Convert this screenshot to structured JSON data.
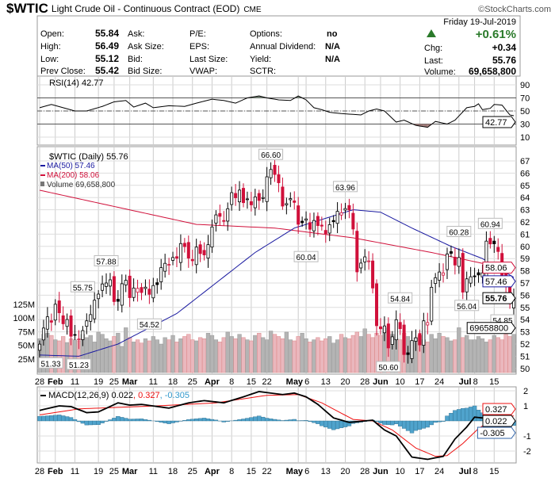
{
  "header": {
    "symbol": "$WTIC",
    "name": "Light Crude Oil - Continuous Contract (EOD)",
    "exchange": "CME",
    "copyright": "©StockCharts.com",
    "date": "Friday  19-Jul-2019",
    "change_pct": "+0.61%",
    "fields": [
      {
        "label": "Open:",
        "value": "55.84"
      },
      {
        "label": "High:",
        "value": "56.49"
      },
      {
        "label": "Low:",
        "value": "55.12"
      },
      {
        "label": "Prev Close:",
        "value": "55.42"
      }
    ],
    "col2": [
      "Ask:",
      "Ask Size:",
      "Bid:",
      "Bid Size:"
    ],
    "col3": [
      "P/E:",
      "EPS:",
      "Last Size:",
      "VWAP:"
    ],
    "col4": [
      {
        "label": "Options:",
        "value": "no"
      },
      {
        "label": "Annual Dividend:",
        "value": "N/A"
      },
      {
        "label": "Yield:",
        "value": "N/A"
      },
      {
        "label": "SCTR:",
        "value": ""
      }
    ],
    "right": [
      {
        "label": "Chg:",
        "value": "+0.34"
      },
      {
        "label": "Last:",
        "value": "55.76"
      },
      {
        "label": "Volume:",
        "value": "69,658,800"
      }
    ]
  },
  "colors": {
    "up": "#000000",
    "down": "#d0103a",
    "ma50": "#1a1aa0",
    "ma200": "#d0103a",
    "vol_up": "#b4b4b4",
    "vol_down": "#eab7bd",
    "hist": "#4fa3cc",
    "macd": "#000000",
    "signal": "#ee1111",
    "rsi_fill_hi": "#7a8a7a",
    "rsi_fill_lo": "#a07a78",
    "change_up": "#2a7a2a"
  },
  "chart_data": [
    {
      "type": "line",
      "title": "RSI(14) 42.77",
      "ylim": [
        0,
        100
      ],
      "yticks": [
        "90",
        "70",
        "50",
        "30",
        "10"
      ],
      "ytick_values": [
        90,
        70,
        50,
        30,
        10
      ],
      "last_label": "42.77",
      "points": [
        [
          0,
          55
        ],
        [
          3,
          60
        ],
        [
          6,
          55
        ],
        [
          9,
          50
        ],
        [
          12,
          50
        ],
        [
          16,
          57
        ],
        [
          19,
          64
        ],
        [
          22,
          66
        ],
        [
          24,
          56
        ],
        [
          27,
          62
        ],
        [
          29,
          55
        ],
        [
          33,
          58
        ],
        [
          37,
          57
        ],
        [
          40,
          62
        ],
        [
          44,
          68
        ],
        [
          47,
          66
        ],
        [
          50,
          62
        ],
        [
          53,
          70
        ],
        [
          56,
          73
        ],
        [
          58,
          70
        ],
        [
          61,
          67
        ],
        [
          64,
          66
        ],
        [
          66,
          73
        ],
        [
          68,
          67
        ],
        [
          70,
          55
        ],
        [
          72,
          52
        ],
        [
          74,
          48
        ],
        [
          77,
          46
        ],
        [
          82,
          44
        ],
        [
          84,
          50
        ],
        [
          86,
          53
        ],
        [
          88,
          50
        ],
        [
          91,
          33
        ],
        [
          93,
          36
        ],
        [
          96,
          28
        ],
        [
          99,
          25
        ],
        [
          101,
          34
        ],
        [
          104,
          30
        ],
        [
          106,
          36
        ],
        [
          109,
          55
        ],
        [
          111,
          57
        ],
        [
          112,
          61
        ],
        [
          113,
          52
        ],
        [
          115,
          54
        ],
        [
          116,
          60
        ],
        [
          118,
          59
        ],
        [
          120,
          44
        ],
        [
          121,
          42.77
        ]
      ]
    },
    {
      "type": "candlestick",
      "title": "$WTIC (Daily) 55.76",
      "ylim": [
        49.5,
        67.5
      ],
      "yticks": [
        "67",
        "66",
        "65",
        "64",
        "63",
        "62",
        "61",
        "60",
        "59",
        "58",
        "57",
        "56",
        "55",
        "54",
        "53",
        "52",
        "51",
        "50"
      ],
      "ytick_values": [
        67,
        66,
        65,
        64,
        63,
        62,
        61,
        60,
        59,
        58,
        57,
        56,
        55,
        54,
        53,
        52,
        51,
        50
      ],
      "legend": [
        "MA(50) 57.46",
        "MA(200) 58.06",
        "Volume 69,658,800"
      ],
      "x_labels": [
        {
          "i": 0,
          "t": "28"
        },
        {
          "i": 4,
          "t": "Feb"
        },
        {
          "i": 9,
          "t": "11"
        },
        {
          "i": 15,
          "t": "19"
        },
        {
          "i": 19,
          "t": "25"
        },
        {
          "i": 23,
          "t": "Mar"
        },
        {
          "i": 29,
          "t": "11"
        },
        {
          "i": 34,
          "t": "18"
        },
        {
          "i": 39,
          "t": "25"
        },
        {
          "i": 44,
          "t": "Apr"
        },
        {
          "i": 49,
          "t": "8"
        },
        {
          "i": 54,
          "t": "15"
        },
        {
          "i": 58,
          "t": "22"
        },
        {
          "i": 66,
          "t": "May"
        },
        {
          "i": 68,
          "t": "6"
        },
        {
          "i": 73,
          "t": "13"
        },
        {
          "i": 78,
          "t": "20"
        },
        {
          "i": 83,
          "t": "28"
        },
        {
          "i": 87,
          "t": "Jun"
        },
        {
          "i": 92,
          "t": "10"
        },
        {
          "i": 97,
          "t": "17"
        },
        {
          "i": 102,
          "t": "24"
        },
        {
          "i": 107,
          "t": "Jul"
        },
        {
          "i": 111,
          "t": "8"
        },
        {
          "i": 116,
          "t": "15"
        }
      ],
      "closes": [
        51.99,
        53.31,
        54.23,
        53.79,
        55.26,
        54.56,
        53.66,
        54.01,
        52.64,
        52.72,
        52.41,
        53.1,
        53.9,
        54.41,
        55.59,
        56.09,
        56.92,
        57.0,
        57.26,
        55.48,
        55.5,
        56.94,
        57.22,
        55.8,
        56.59,
        56.56,
        56.22,
        56.66,
        56.07,
        56.79,
        56.87,
        58.26,
        58.61,
        58.52,
        59.09,
        59.03,
        60.23,
        59.98,
        59.04,
        58.82,
        59.94,
        59.41,
        59.3,
        60.14,
        61.59,
        62.58,
        62.46,
        62.1,
        63.08,
        64.4,
        63.98,
        64.61,
        63.58,
        63.89,
        63.4,
        64.05,
        63.76,
        64.0,
        65.7,
        66.3,
        65.89,
        65.21,
        63.3,
        63.5,
        63.91,
        63.6,
        61.81,
        61.94,
        62.25,
        61.4,
        62.12,
        61.7,
        61.66,
        61.04,
        61.78,
        62.02,
        62.87,
        62.76,
        63.1,
        62.99,
        61.42,
        57.91,
        58.63,
        59.14,
        58.81,
        56.59,
        53.5,
        53.25,
        53.48,
        51.68,
        52.59,
        53.99,
        53.26,
        51.14,
        51.14,
        52.28,
        52.51,
        51.93,
        53.9,
        53.76,
        56.65,
        57.43,
        57.9,
        57.83,
        59.38,
        59.43,
        58.47,
        59.09,
        56.25,
        57.34,
        57.51,
        57.51,
        57.66,
        57.83,
        60.43,
        60.2,
        60.21,
        59.58,
        57.62,
        56.78,
        55.3,
        55.76
      ],
      "volumes_m": [
        62,
        70,
        72,
        68,
        60,
        58,
        66,
        55,
        62,
        60,
        58,
        70,
        64,
        68,
        56,
        74,
        70,
        62,
        58,
        66,
        72,
        48,
        82,
        64,
        56,
        60,
        54,
        62,
        58,
        66,
        60,
        52,
        64,
        60,
        68,
        56,
        62,
        66,
        70,
        60,
        58,
        64,
        62,
        72,
        68,
        60,
        56,
        64,
        74,
        66,
        62,
        70,
        64,
        60,
        58,
        68,
        72,
        64,
        60,
        76,
        70,
        66,
        62,
        74,
        60,
        58,
        66,
        72,
        62,
        56,
        60,
        64,
        58,
        62,
        66,
        54,
        60,
        70,
        64,
        62,
        68,
        74,
        66,
        80,
        70,
        64,
        72,
        68,
        82,
        76,
        70,
        62,
        60,
        72,
        66,
        58,
        64,
        68,
        60,
        56,
        70,
        62,
        72,
        66,
        64,
        58,
        60,
        82,
        64,
        68,
        60,
        60,
        66,
        62,
        56,
        60,
        68,
        64,
        60,
        70,
        66,
        70
      ],
      "ma50": [
        [
          0,
          51.1
        ],
        [
          10,
          51.0
        ],
        [
          20,
          52.0
        ],
        [
          35,
          54.5
        ],
        [
          45,
          57.0
        ],
        [
          55,
          59.5
        ],
        [
          65,
          61.5
        ],
        [
          80,
          63.0
        ],
        [
          87,
          62.8
        ],
        [
          95,
          61.5
        ],
        [
          105,
          60.0
        ],
        [
          113,
          59.0
        ],
        [
          121,
          57.46
        ]
      ],
      "ma200": [
        [
          0,
          64.6
        ],
        [
          20,
          63.2
        ],
        [
          40,
          61.8
        ],
        [
          60,
          61.5
        ],
        [
          80,
          60.7
        ],
        [
          100,
          59.5
        ],
        [
          121,
          58.06
        ]
      ],
      "annotations": [
        {
          "i": 0,
          "v": "51.33",
          "pos": "low"
        },
        {
          "i": 10,
          "v": "51.23",
          "pos": "low"
        },
        {
          "i": 11,
          "v": "55.75",
          "pos": "high"
        },
        {
          "i": 17,
          "v": "57.88",
          "pos": "high"
        },
        {
          "i": 28,
          "v": "54.52",
          "pos": "low"
        },
        {
          "i": 59,
          "v": "66.60",
          "pos": "high"
        },
        {
          "i": 68,
          "v": "60.04",
          "pos": "low"
        },
        {
          "i": 78,
          "v": "63.96",
          "pos": "high"
        },
        {
          "i": 89,
          "v": "50.60",
          "pos": "low"
        },
        {
          "i": 92,
          "v": "54.84",
          "pos": "high"
        },
        {
          "i": 107,
          "v": "60.28",
          "pos": "high"
        },
        {
          "i": 109,
          "v": "56.04",
          "pos": "low"
        },
        {
          "i": 115,
          "v": "60.94",
          "pos": "high"
        },
        {
          "i": 119,
          "v": "54.85",
          "pos": "low"
        }
      ],
      "vol_ticks": [
        "125M",
        "100M",
        "75M",
        "50M",
        "25M"
      ],
      "vol_tick_values": [
        125,
        100,
        75,
        50,
        25
      ],
      "tags": {
        "ma200": "58.06",
        "ma50": "57.46",
        "last": "55.76",
        "volume": "69658800"
      }
    },
    {
      "type": "line",
      "title": "MACD(12,26,9) 0.022, 0.327, -0.305",
      "legend": [
        "MACD(12,26,9) 0.022",
        ", 0.327",
        ", -0.305"
      ],
      "ylim": [
        -3,
        2.5
      ],
      "yticks": [
        "2",
        "1",
        "-1",
        "-2"
      ],
      "ytick_values": [
        2,
        1,
        -1,
        -2
      ],
      "macd": [
        [
          0,
          0.7
        ],
        [
          5,
          1.0
        ],
        [
          8,
          0.95
        ],
        [
          12,
          0.55
        ],
        [
          15,
          0.6
        ],
        [
          20,
          1.2
        ],
        [
          23,
          1.05
        ],
        [
          26,
          1.1
        ],
        [
          33,
          0.85
        ],
        [
          38,
          1.2
        ],
        [
          42,
          1.35
        ],
        [
          47,
          1.2
        ],
        [
          52,
          1.6
        ],
        [
          56,
          1.95
        ],
        [
          62,
          1.75
        ],
        [
          65,
          1.85
        ],
        [
          68,
          1.6
        ],
        [
          71,
          1.1
        ],
        [
          75,
          0.2
        ],
        [
          79,
          -0.1
        ],
        [
          85,
          0.05
        ],
        [
          88,
          -0.6
        ],
        [
          91,
          -1.0
        ],
        [
          95,
          -2.4
        ],
        [
          99,
          -2.55
        ],
        [
          103,
          -2.35
        ],
        [
          106,
          -1.2
        ],
        [
          109,
          -0.4
        ],
        [
          111,
          0.25
        ],
        [
          113,
          0.2
        ],
        [
          117,
          0.75
        ],
        [
          121,
          0.022
        ]
      ],
      "signal": [
        [
          0,
          0.4
        ],
        [
          10,
          0.8
        ],
        [
          20,
          0.9
        ],
        [
          30,
          1.0
        ],
        [
          45,
          1.2
        ],
        [
          58,
          1.7
        ],
        [
          66,
          1.75
        ],
        [
          72,
          1.2
        ],
        [
          80,
          0.1
        ],
        [
          85,
          0.0
        ],
        [
          90,
          -0.6
        ],
        [
          96,
          -1.8
        ],
        [
          101,
          -2.35
        ],
        [
          104,
          -2.3
        ],
        [
          108,
          -1.5
        ],
        [
          112,
          -0.5
        ],
        [
          117,
          0.3
        ],
        [
          121,
          0.327
        ]
      ],
      "tags": {
        "signal": "0.327",
        "macd": "0.022",
        "hist": "-0.305"
      }
    }
  ]
}
